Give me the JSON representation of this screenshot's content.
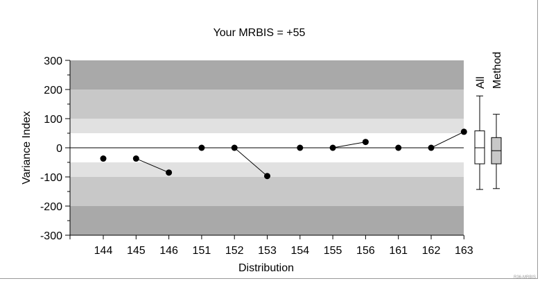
{
  "chart_data": {
    "type": "scatter",
    "title": "Your MRBIS = +55",
    "xlabel": "Distribution",
    "ylabel": "Variance Index",
    "ylim": [
      -300,
      300
    ],
    "yticks": [
      300,
      200,
      100,
      0,
      -100,
      -200,
      -300
    ],
    "ytick_labels": [
      "300",
      "200",
      "100",
      "0",
      "-100",
      "-200",
      "-300"
    ],
    "categories": [
      "144",
      "145",
      "146",
      "151",
      "152",
      "153",
      "154",
      "155",
      "156",
      "161",
      "162",
      "163"
    ],
    "values": [
      -37,
      -37,
      -85,
      0,
      0,
      -97,
      0,
      0,
      20,
      0,
      0,
      55
    ],
    "connected_pairs": [
      [
        1,
        2
      ],
      [
        4,
        5
      ],
      [
        7,
        8
      ],
      [
        10,
        11
      ]
    ],
    "bands": [
      {
        "from": 200,
        "to": 300,
        "color": "#a9a9a9"
      },
      {
        "from": 100,
        "to": 200,
        "color": "#c8c8c8"
      },
      {
        "from": 50,
        "to": 100,
        "color": "#e1e1e1"
      },
      {
        "from": -50,
        "to": 50,
        "color": "#ffffff"
      },
      {
        "from": -100,
        "to": -50,
        "color": "#e1e1e1"
      },
      {
        "from": -200,
        "to": -100,
        "color": "#c8c8c8"
      },
      {
        "from": -300,
        "to": -200,
        "color": "#a9a9a9"
      }
    ],
    "boxplots": [
      {
        "label": "All",
        "whisker_low": -143,
        "q1": -55,
        "median": 0,
        "q3": 58,
        "whisker_high": 178,
        "fill": "#ffffff"
      },
      {
        "label": "Method",
        "whisker_low": -140,
        "q1": -55,
        "median": -10,
        "q3": 35,
        "whisker_high": 115,
        "fill": "#c8c8c8"
      }
    ]
  },
  "footer": {
    "code": "R36-MRBIS"
  }
}
